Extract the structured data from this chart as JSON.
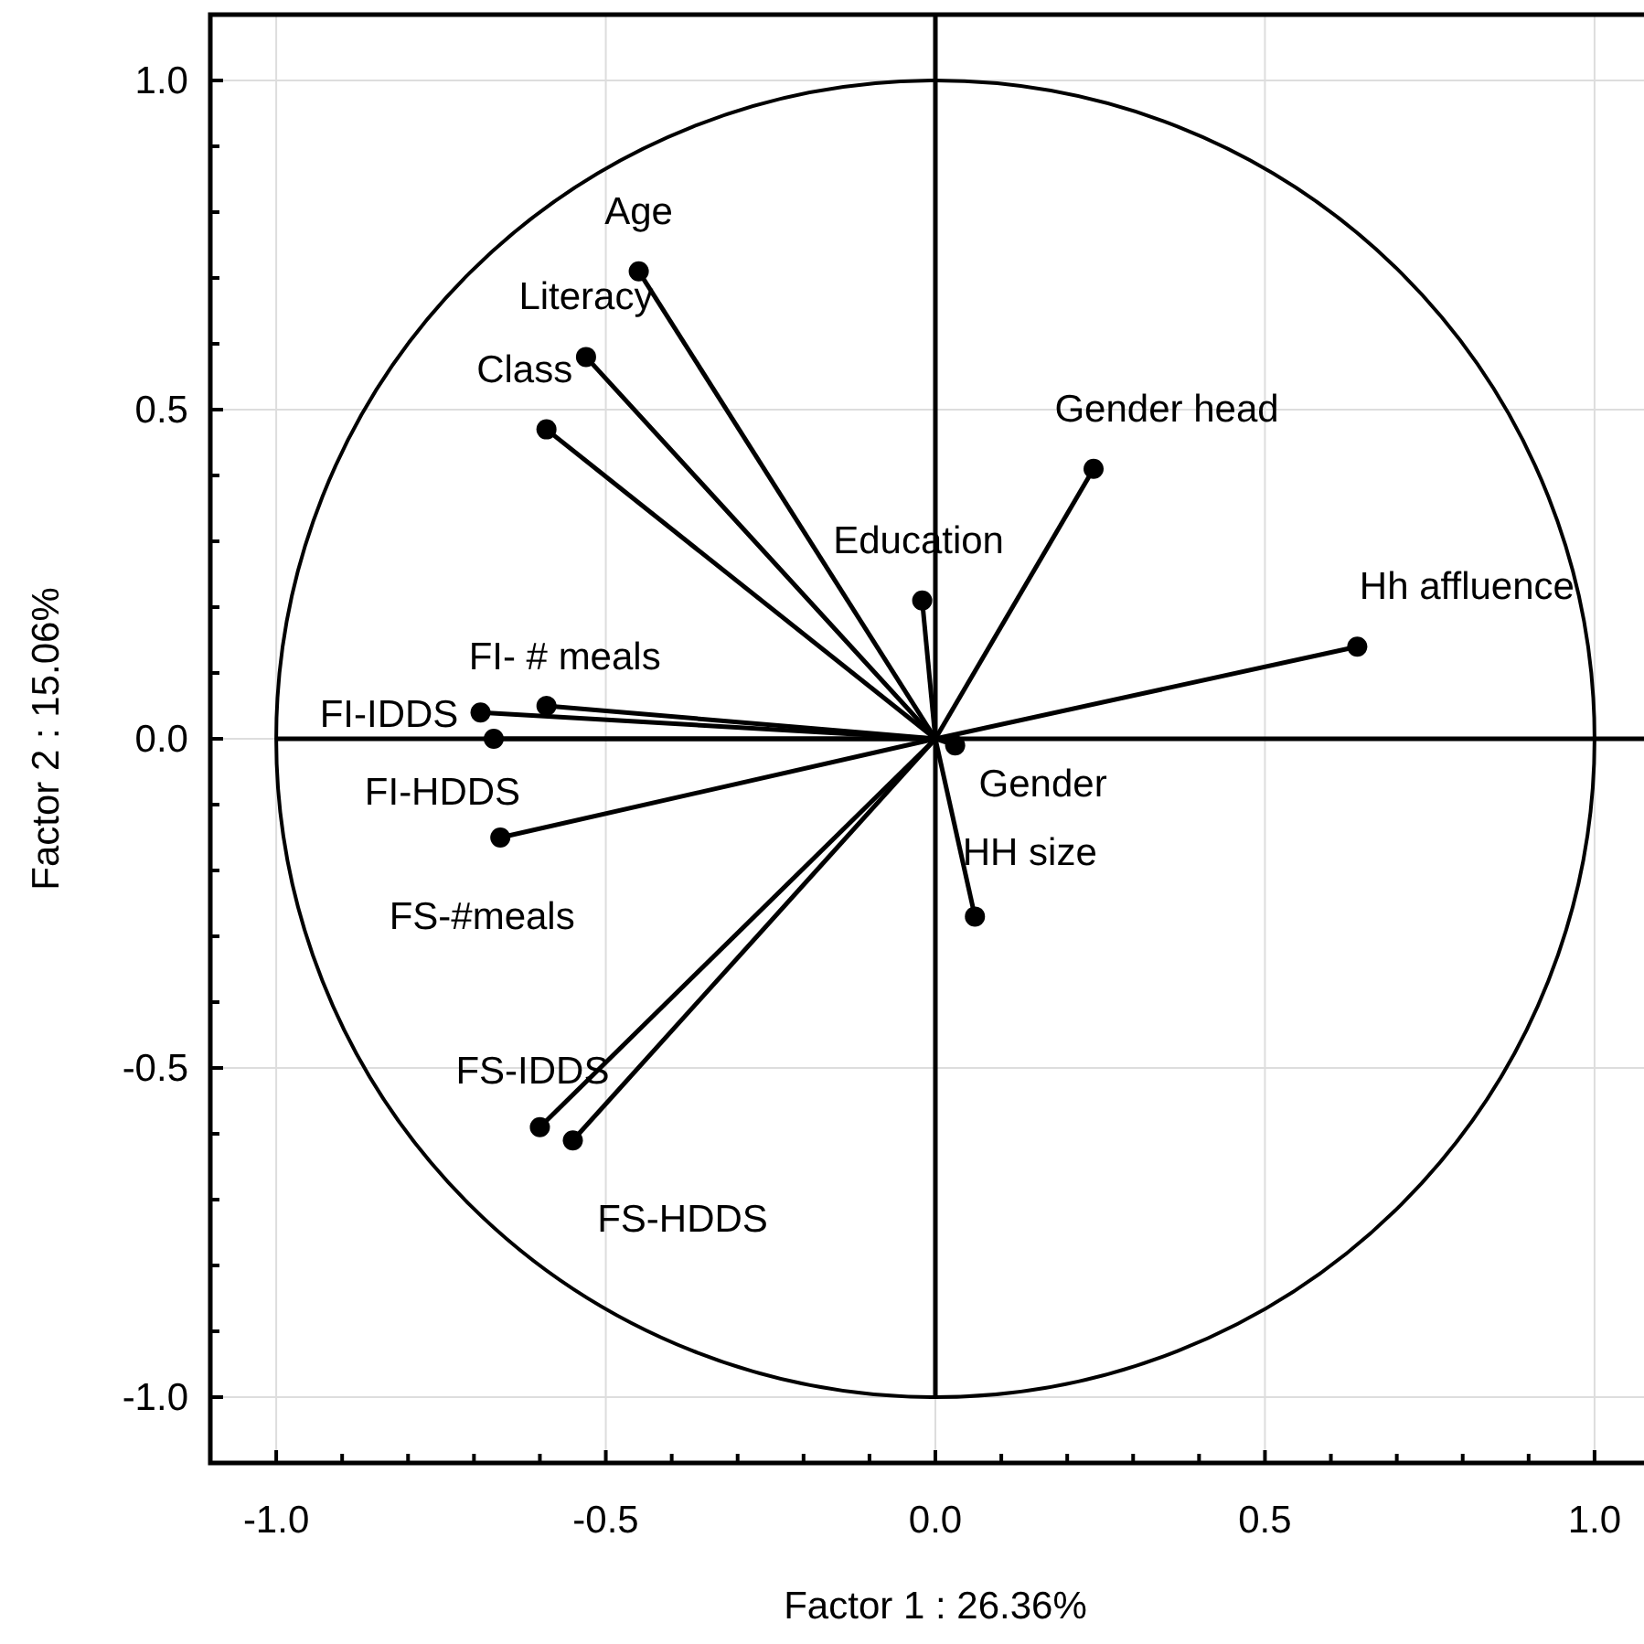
{
  "chart_data": {
    "type": "scatter",
    "xlabel": "Factor 1 : 26.36%",
    "ylabel": "Factor 2 : 15.06%",
    "xlim": [
      -1.1,
      1.1
    ],
    "ylim": [
      -1.1,
      1.1
    ],
    "xticks": [
      {
        "value": -1,
        "label": "-1.0"
      },
      {
        "value": -0.9,
        "label": null
      },
      {
        "value": -0.8,
        "label": null
      },
      {
        "value": -0.7,
        "label": null
      },
      {
        "value": -0.6,
        "label": null
      },
      {
        "value": -0.5,
        "label": "-0.5"
      },
      {
        "value": -0.4,
        "label": null
      },
      {
        "value": -0.3,
        "label": null
      },
      {
        "value": -0.2,
        "label": null
      },
      {
        "value": -0.1,
        "label": null
      },
      {
        "value": 0,
        "label": "0.0"
      },
      {
        "value": 0.1,
        "label": null
      },
      {
        "value": 0.2,
        "label": null
      },
      {
        "value": 0.3,
        "label": null
      },
      {
        "value": 0.4,
        "label": null
      },
      {
        "value": 0.5,
        "label": "0.5"
      },
      {
        "value": 0.6,
        "label": null
      },
      {
        "value": 0.7,
        "label": null
      },
      {
        "value": 0.8,
        "label": null
      },
      {
        "value": 0.9,
        "label": null
      },
      {
        "value": 1,
        "label": "1.0"
      }
    ],
    "yticks": [
      {
        "value": -1,
        "label": "-1.0"
      },
      {
        "value": -0.9,
        "label": null
      },
      {
        "value": -0.8,
        "label": null
      },
      {
        "value": -0.7,
        "label": null
      },
      {
        "value": -0.6,
        "label": null
      },
      {
        "value": -0.5,
        "label": "-0.5"
      },
      {
        "value": -0.4,
        "label": null
      },
      {
        "value": -0.3,
        "label": null
      },
      {
        "value": -0.2,
        "label": null
      },
      {
        "value": -0.1,
        "label": null
      },
      {
        "value": 0,
        "label": "0.0"
      },
      {
        "value": 0.1,
        "label": null
      },
      {
        "value": 0.2,
        "label": null
      },
      {
        "value": 0.3,
        "label": null
      },
      {
        "value": 0.4,
        "label": null
      },
      {
        "value": 0.5,
        "label": "0.5"
      },
      {
        "value": 0.6,
        "label": null
      },
      {
        "value": 0.7,
        "label": null
      },
      {
        "value": 0.8,
        "label": null
      },
      {
        "value": 0.9,
        "label": null
      },
      {
        "value": 1,
        "label": "1.0"
      }
    ],
    "grid": true,
    "series": [
      {
        "type": "line",
        "color": "#000000",
        "x": [
          -1.0,
          1.1
        ],
        "values": [
          0,
          0
        ]
      },
      {
        "type": "line",
        "color": "#000000",
        "x": [
          0,
          0
        ],
        "values": [
          -1.0,
          1.1
        ]
      },
      {
        "marker": "circle",
        "color": "#000000",
        "x": [
          -0.45,
          -0.53,
          -0.59,
          0.24,
          -0.02,
          0.64,
          -0.59,
          -0.69,
          -0.67,
          0.03,
          -0.66,
          0.06,
          -0.6,
          -0.55
        ],
        "values": [
          0.71,
          0.58,
          0.47,
          0.41,
          0.21,
          0.14,
          0.05,
          0.04,
          0.0,
          -0.01,
          -0.15,
          -0.27,
          -0.59,
          -0.61
        ]
      },
      {
        "type": "line",
        "color": "#000000",
        "x": [
          0,
          -0.45
        ],
        "values": [
          0,
          0.71
        ]
      },
      {
        "type": "line",
        "color": "#000000",
        "x": [
          0,
          -0.53
        ],
        "values": [
          0,
          0.58
        ]
      },
      {
        "type": "line",
        "color": "#000000",
        "x": [
          0,
          -0.59
        ],
        "values": [
          0,
          0.47
        ]
      },
      {
        "type": "line",
        "color": "#000000",
        "x": [
          0,
          0.24
        ],
        "values": [
          0,
          0.41
        ]
      },
      {
        "type": "line",
        "color": "#000000",
        "x": [
          0,
          -0.02
        ],
        "values": [
          0,
          0.21
        ]
      },
      {
        "type": "line",
        "color": "#000000",
        "x": [
          0,
          0.64
        ],
        "values": [
          0,
          0.14
        ]
      },
      {
        "type": "line",
        "color": "#000000",
        "x": [
          0,
          -0.59
        ],
        "values": [
          0,
          0.05
        ]
      },
      {
        "type": "line",
        "color": "#000000",
        "x": [
          0,
          -0.69
        ],
        "values": [
          0,
          0.04
        ]
      },
      {
        "type": "line",
        "color": "#000000",
        "x": [
          0,
          -0.67
        ],
        "values": [
          0,
          0.0
        ]
      },
      {
        "type": "line",
        "color": "#000000",
        "x": [
          0,
          0.03
        ],
        "values": [
          0,
          -0.01
        ]
      },
      {
        "type": "line",
        "color": "#000000",
        "x": [
          0,
          -0.66
        ],
        "values": [
          0,
          -0.15
        ]
      },
      {
        "type": "line",
        "color": "#000000",
        "x": [
          0,
          0.06
        ],
        "values": [
          0,
          -0.27
        ]
      },
      {
        "type": "line",
        "color": "#000000",
        "x": [
          0,
          -0.6
        ],
        "values": [
          0,
          -0.59
        ]
      },
      {
        "type": "line",
        "color": "#000000",
        "x": [
          0,
          -0.55
        ],
        "values": [
          0,
          -0.61
        ]
      }
    ],
    "annotations": [
      {
        "text": "Age",
        "x": -0.45,
        "y": 0.71
      },
      {
        "text": "Literacy",
        "x": -0.53,
        "y": 0.58
      },
      {
        "text": "Class",
        "x": -0.59,
        "y": 0.47
      },
      {
        "text": "Gender head",
        "x": 0.24,
        "y": 0.41
      },
      {
        "text": "Education",
        "x": -0.02,
        "y": 0.21
      },
      {
        "text": "Hh affluence",
        "x": 0.64,
        "y": 0.14
      },
      {
        "text": "FI- # meals",
        "x": -0.59,
        "y": 0.05
      },
      {
        "text": "FI-IDDS",
        "x": -0.69,
        "y": 0.04
      },
      {
        "text": "FI-HDDS",
        "x": -0.67,
        "y": 0.0
      },
      {
        "text": "Gender",
        "x": 0.03,
        "y": -0.01
      },
      {
        "text": "FS-#meals",
        "x": -0.66,
        "y": -0.15
      },
      {
        "text": "HH size",
        "x": 0.06,
        "y": -0.27
      },
      {
        "text": "FS-IDDS",
        "x": -0.6,
        "y": -0.59
      },
      {
        "text": "FS-HDDS",
        "x": -0.55,
        "y": -0.61
      }
    ]
  }
}
